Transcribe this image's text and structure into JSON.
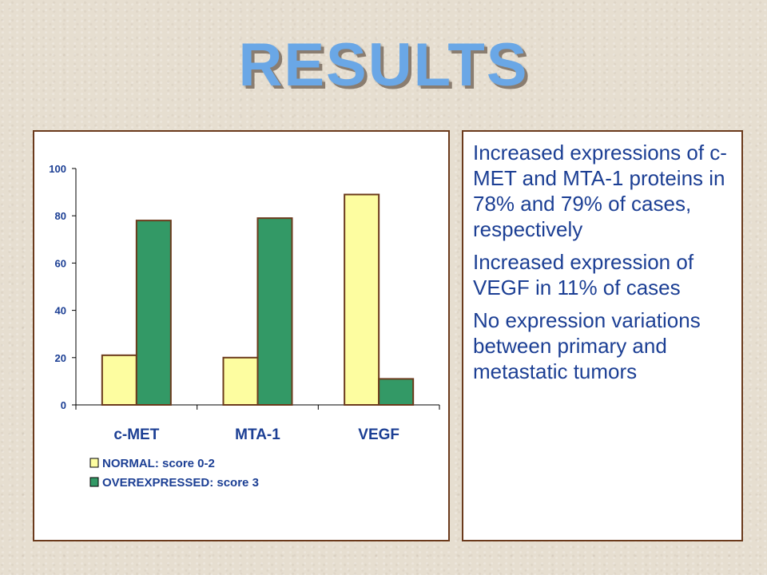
{
  "title": "RESULTS",
  "colors": {
    "title": "#6aa7e6",
    "text": "#1c3f94",
    "border": "#6b3a1c",
    "normal": "#fdfda0",
    "overexpressed": "#339966"
  },
  "chart_data": {
    "type": "bar",
    "categories": [
      "c-MET",
      "MTA-1",
      "VEGF"
    ],
    "series": [
      {
        "name": "NORMAL: score 0-2",
        "values": [
          21,
          20,
          89
        ]
      },
      {
        "name": "OVEREXPRESSED: score 3",
        "values": [
          78,
          79,
          11
        ]
      }
    ],
    "ylim": [
      0,
      100
    ],
    "yticks": [
      0,
      20,
      40,
      60,
      80,
      100
    ],
    "grid": false,
    "legend": "bottom-left"
  },
  "text_panel": {
    "points": [
      "Increased expressions of c-MET and MTA-1 proteins in 78% and 79% of cases, respectively",
      "Increased expression of VEGF in 11% of cases",
      "No expression variations between primary and metastatic tumors"
    ]
  }
}
